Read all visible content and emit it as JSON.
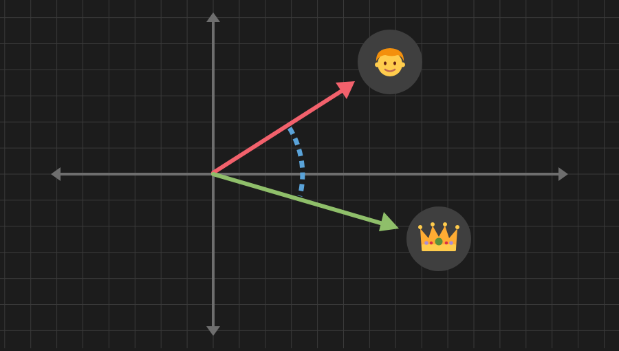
{
  "colors": {
    "background": "#1c1c1c",
    "grid": "#3a3a3a",
    "axis": "#6e6e6e",
    "vector_boy": "#f2616c",
    "vector_crown": "#8fbf6a",
    "angle_arc": "#5aa3d9",
    "badge": "#3f3f3f"
  },
  "vectors": [
    {
      "name": "boy",
      "icon": "boy-face-emoji",
      "direction_deg": 30,
      "color_key": "vector_boy"
    },
    {
      "name": "crown",
      "icon": "crown-emoji",
      "direction_deg": -15,
      "color_key": "vector_crown"
    }
  ],
  "angle_marker": {
    "style": "dashed-arc",
    "between": [
      "boy",
      "crown"
    ]
  },
  "axes": {
    "horizontal": "double-arrow",
    "vertical": "double-arrow",
    "grid": true
  }
}
